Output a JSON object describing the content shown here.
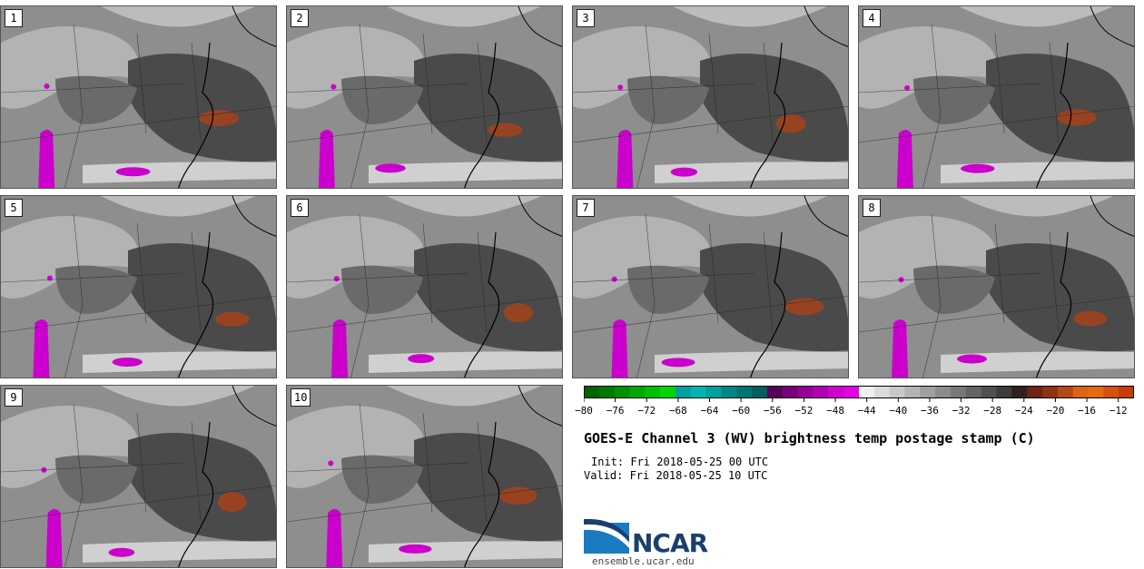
{
  "panels": [
    {
      "label": "1"
    },
    {
      "label": "2"
    },
    {
      "label": "3"
    },
    {
      "label": "4"
    },
    {
      "label": "5"
    },
    {
      "label": "6"
    },
    {
      "label": "7"
    },
    {
      "label": "8"
    },
    {
      "label": "9"
    },
    {
      "label": "10"
    }
  ],
  "colorbar": {
    "min": -80,
    "max": -10,
    "ticks": [
      "−80",
      "−76",
      "−72",
      "−68",
      "−64",
      "−60",
      "−56",
      "−52",
      "−48",
      "−44",
      "−40",
      "−36",
      "−32",
      "−28",
      "−24",
      "−20",
      "−16",
      "−12"
    ],
    "colors": [
      "#006400",
      "#007a00",
      "#009000",
      "#00a800",
      "#00c000",
      "#00d800",
      "#00a0a0",
      "#00b4b4",
      "#009e9e",
      "#008888",
      "#007474",
      "#006060",
      "#5a005a",
      "#780078",
      "#960096",
      "#b400b4",
      "#d200d2",
      "#e600e6",
      "#f0f0f0",
      "#dcdcdc",
      "#c8c8c8",
      "#b4b4b4",
      "#a0a0a0",
      "#8c8c8c",
      "#787878",
      "#646464",
      "#505050",
      "#3c3c3c",
      "#302020",
      "#6e2410",
      "#8c3412",
      "#b44812",
      "#dc6414",
      "#e66a10",
      "#d85010",
      "#c83c08"
    ]
  },
  "title": "GOES-E Channel 3 (WV) brightness temp postage stamp (C)",
  "init": "Init: Fri 2018-05-25 00 UTC",
  "valid": "Valid: Fri 2018-05-25 10 UTC",
  "logo": {
    "text": "NCAR",
    "url": "ensemble.ucar.edu"
  }
}
